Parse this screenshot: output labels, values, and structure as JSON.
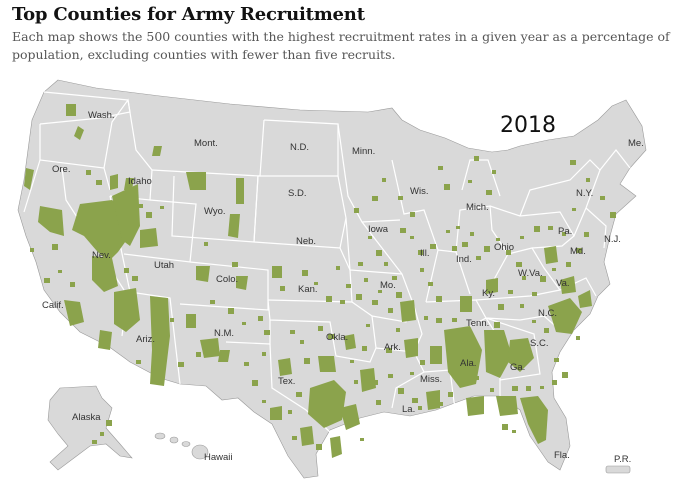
{
  "header": {
    "title": "Top Counties for Army Recruitment",
    "subtitle": "Each map shows the 500 counties with the highest recruitment rates in a given year as a percentage of population, excluding counties with fewer than five recruits."
  },
  "map": {
    "year": "2018",
    "colors": {
      "land": "#d9d9d9",
      "border": "#ffffff",
      "highlight": "#8ba34c",
      "outline": "#9a9a9a"
    },
    "state_labels": {
      "wa": "Wash.",
      "or": "Ore.",
      "ca": "Calif.",
      "id": "Idaho",
      "nv": "Nev.",
      "mt": "Mont.",
      "wy": "Wyo.",
      "ut": "Utah",
      "az": "Ariz.",
      "co": "Colo.",
      "nm": "N.M.",
      "nd": "N.D.",
      "sd": "S.D.",
      "ne": "Neb.",
      "ks": "Kan.",
      "ok": "Okla.",
      "tx": "Tex.",
      "mn": "Minn.",
      "ia": "Iowa",
      "mo": "Mo.",
      "ar": "Ark.",
      "la": "La.",
      "wi": "Wis.",
      "il": "Ill.",
      "mi": "Mich.",
      "in": "Ind.",
      "oh": "Ohio",
      "ky": "Ky.",
      "tn": "Tenn.",
      "ms": "Miss.",
      "al": "Ala.",
      "ga": "Ga.",
      "fl": "Fla.",
      "sc": "S.C.",
      "nc": "N.C.",
      "va": "Va.",
      "wv": "W.Va.",
      "md": "Md.",
      "pa": "Pa.",
      "ny": "N.Y.",
      "nj": "N.J.",
      "me": "Me.",
      "ak": "Alaska",
      "hi": "Hawaii",
      "pr": "P.R."
    }
  }
}
